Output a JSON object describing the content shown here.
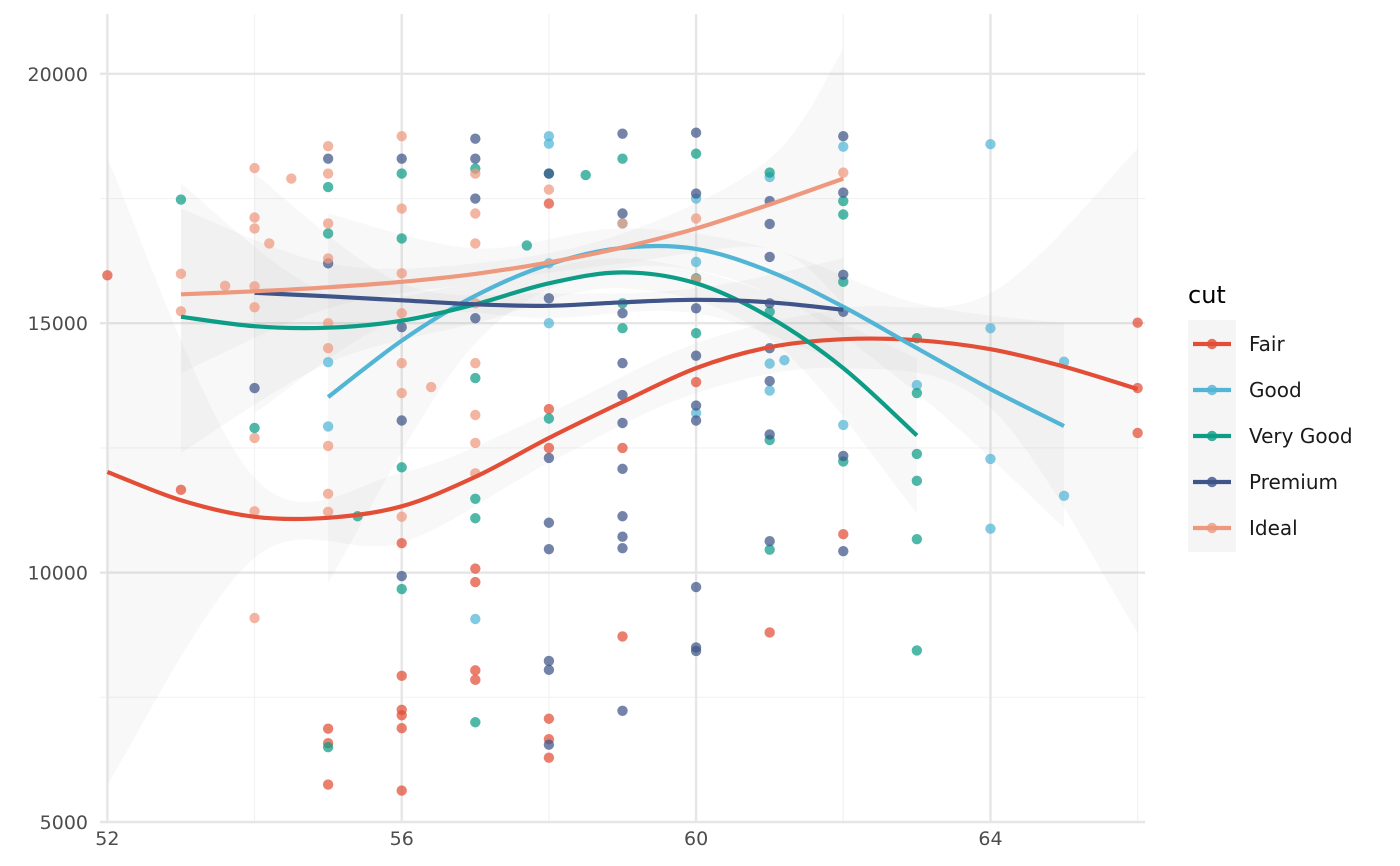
{
  "chart_data": {
    "type": "scatter",
    "title": "",
    "xlabel": "",
    "ylabel": "",
    "xlim": [
      51.9,
      66.1
    ],
    "ylim": [
      5000,
      21200
    ],
    "x_ticks": [
      52,
      56,
      60,
      64
    ],
    "x_tick_labels": [
      "52",
      "56",
      "60",
      "64"
    ],
    "y_ticks": [
      5000,
      10000,
      15000,
      20000
    ],
    "y_tick_labels": [
      "5000",
      "10000",
      "15000",
      "20000"
    ],
    "grid": true,
    "legend": {
      "title": "cut",
      "position": "right",
      "entries": [
        "Fair",
        "Good",
        "Very Good",
        "Premium",
        "Ideal"
      ]
    },
    "series": [
      {
        "name": "Fair",
        "color": "#E24E36",
        "points": [
          [
            52,
            15960
          ],
          [
            53,
            11660
          ],
          [
            55,
            6870
          ],
          [
            55,
            6580
          ],
          [
            55,
            5750
          ],
          [
            56,
            10590
          ],
          [
            56,
            7930
          ],
          [
            56,
            7250
          ],
          [
            56,
            7140
          ],
          [
            56,
            6880
          ],
          [
            56,
            5630
          ],
          [
            57,
            10080
          ],
          [
            57,
            9810
          ],
          [
            57,
            8040
          ],
          [
            57,
            7850
          ],
          [
            58,
            13280
          ],
          [
            58,
            12500
          ],
          [
            58,
            17400
          ],
          [
            58,
            7070
          ],
          [
            58,
            6660
          ],
          [
            58,
            6290
          ],
          [
            59,
            12500
          ],
          [
            59,
            8720
          ],
          [
            60,
            13820
          ],
          [
            61,
            8800
          ],
          [
            62,
            10770
          ],
          [
            66,
            15010
          ],
          [
            66,
            13700
          ],
          [
            66,
            12800
          ]
        ],
        "trend": [
          [
            52,
            12020
          ],
          [
            53,
            11450
          ],
          [
            54,
            11120
          ],
          [
            55,
            11100
          ],
          [
            56,
            11330
          ],
          [
            57,
            11920
          ],
          [
            58,
            12700
          ],
          [
            59,
            13420
          ],
          [
            60,
            14100
          ],
          [
            61,
            14520
          ],
          [
            62,
            14680
          ],
          [
            63,
            14660
          ],
          [
            64,
            14480
          ],
          [
            65,
            14130
          ],
          [
            66,
            13680
          ]
        ],
        "band": [
          [
            52,
            5750,
            18300
          ],
          [
            54,
            10300,
            11900
          ],
          [
            56,
            10600,
            12000
          ],
          [
            58,
            12200,
            13200
          ],
          [
            60,
            13600,
            14600
          ],
          [
            62,
            14100,
            15300
          ],
          [
            64,
            13300,
            15600
          ],
          [
            66,
            8800,
            18500
          ]
        ]
      },
      {
        "name": "Good",
        "color": "#52B5D6",
        "points": [
          [
            55,
            14220
          ],
          [
            55,
            12930
          ],
          [
            57,
            9070
          ],
          [
            58,
            18750
          ],
          [
            58,
            18600
          ],
          [
            58,
            16200
          ],
          [
            58,
            15000
          ],
          [
            59,
            17000
          ],
          [
            60,
            17500
          ],
          [
            60,
            16230
          ],
          [
            60,
            13200
          ],
          [
            61,
            17930
          ],
          [
            61,
            14190
          ],
          [
            61,
            13650
          ],
          [
            61.2,
            14260
          ],
          [
            62,
            18540
          ],
          [
            62,
            12960
          ],
          [
            63,
            13760
          ],
          [
            64,
            18590
          ],
          [
            64,
            14900
          ],
          [
            64,
            12280
          ],
          [
            64,
            10880
          ],
          [
            65,
            14230
          ],
          [
            65,
            11540
          ]
        ],
        "trend": [
          [
            55,
            13520
          ],
          [
            56,
            14650
          ],
          [
            57,
            15550
          ],
          [
            58,
            16180
          ],
          [
            59,
            16510
          ],
          [
            60,
            16490
          ],
          [
            61,
            16040
          ],
          [
            62,
            15330
          ],
          [
            63,
            14500
          ],
          [
            64,
            13680
          ],
          [
            65,
            12940
          ]
        ],
        "band": [
          [
            55,
            9800,
            17200
          ],
          [
            57,
            14600,
            16500
          ],
          [
            59,
            16100,
            16900
          ],
          [
            61,
            15600,
            16500
          ],
          [
            63,
            13600,
            15400
          ],
          [
            65,
            10900,
            15000
          ]
        ]
      },
      {
        "name": "Very Good",
        "color": "#0D9D86",
        "points": [
          [
            53,
            17480
          ],
          [
            54,
            12900
          ],
          [
            55,
            17730
          ],
          [
            55,
            16800
          ],
          [
            55,
            6500
          ],
          [
            55.4,
            11130
          ],
          [
            56,
            18000
          ],
          [
            56,
            12110
          ],
          [
            56,
            16700
          ],
          [
            56,
            9670
          ],
          [
            57,
            18100
          ],
          [
            57,
            13900
          ],
          [
            57,
            11480
          ],
          [
            57,
            11090
          ],
          [
            57,
            7000
          ],
          [
            57.7,
            16560
          ],
          [
            58,
            18000
          ],
          [
            58,
            13090
          ],
          [
            58.5,
            17970
          ],
          [
            59,
            18300
          ],
          [
            59,
            15400
          ],
          [
            59,
            14900
          ],
          [
            60,
            18400
          ],
          [
            60,
            15900
          ],
          [
            60,
            14800
          ],
          [
            61,
            18020
          ],
          [
            61,
            15230
          ],
          [
            61,
            12660
          ],
          [
            61,
            10460
          ],
          [
            62,
            17450
          ],
          [
            62,
            17180
          ],
          [
            62,
            15830
          ],
          [
            62,
            12230
          ],
          [
            63,
            14700
          ],
          [
            63,
            13600
          ],
          [
            63,
            12380
          ],
          [
            63,
            11840
          ],
          [
            63,
            10670
          ],
          [
            63,
            8440
          ]
        ],
        "trend": [
          [
            53,
            15130
          ],
          [
            54,
            14940
          ],
          [
            55,
            14910
          ],
          [
            56,
            15050
          ],
          [
            57,
            15380
          ],
          [
            58,
            15800
          ],
          [
            59,
            16020
          ],
          [
            60,
            15800
          ],
          [
            61,
            15120
          ],
          [
            62,
            14100
          ],
          [
            63,
            12750
          ]
        ],
        "band": [
          [
            53,
            12400,
            17800
          ],
          [
            55,
            14200,
            15600
          ],
          [
            57,
            15000,
            15800
          ],
          [
            59,
            15700,
            16300
          ],
          [
            61,
            14700,
            15600
          ],
          [
            63,
            11200,
            14300
          ]
        ]
      },
      {
        "name": "Premium",
        "color": "#3F5488",
        "points": [
          [
            54,
            13700
          ],
          [
            55,
            18300
          ],
          [
            55,
            16200
          ],
          [
            56,
            18300
          ],
          [
            56,
            14920
          ],
          [
            56,
            13050
          ],
          [
            56,
            9930
          ],
          [
            57,
            18700
          ],
          [
            57,
            18300
          ],
          [
            57,
            17500
          ],
          [
            57,
            15100
          ],
          [
            58,
            18000
          ],
          [
            58,
            15500
          ],
          [
            58,
            12300
          ],
          [
            58,
            11000
          ],
          [
            58,
            10470
          ],
          [
            58,
            8230
          ],
          [
            58,
            8050
          ],
          [
            58,
            6550
          ],
          [
            59,
            18800
          ],
          [
            59,
            17200
          ],
          [
            59,
            15200
          ],
          [
            59,
            14200
          ],
          [
            59,
            13560
          ],
          [
            59,
            13000
          ],
          [
            59,
            12080
          ],
          [
            59,
            11130
          ],
          [
            59,
            10720
          ],
          [
            59,
            10490
          ],
          [
            59,
            7230
          ],
          [
            60,
            18820
          ],
          [
            60,
            17600
          ],
          [
            60,
            15300
          ],
          [
            60,
            14350
          ],
          [
            60,
            13350
          ],
          [
            60,
            13050
          ],
          [
            60,
            9710
          ],
          [
            60,
            8500
          ],
          [
            60,
            8430
          ],
          [
            61,
            17450
          ],
          [
            61,
            16990
          ],
          [
            61,
            16330
          ],
          [
            61,
            15400
          ],
          [
            61,
            14500
          ],
          [
            61,
            13840
          ],
          [
            61,
            12770
          ],
          [
            61,
            10630
          ],
          [
            62,
            18750
          ],
          [
            62,
            17620
          ],
          [
            62,
            15970
          ],
          [
            62,
            15230
          ],
          [
            62,
            12340
          ],
          [
            62,
            10430
          ]
        ],
        "trend": [
          [
            54,
            15610
          ],
          [
            55,
            15540
          ],
          [
            56,
            15460
          ],
          [
            57,
            15380
          ],
          [
            58,
            15350
          ],
          [
            59,
            15420
          ],
          [
            60,
            15470
          ],
          [
            61,
            15420
          ],
          [
            62,
            15270
          ]
        ],
        "band": [
          [
            54,
            13200,
            18000
          ],
          [
            56,
            15100,
            15800
          ],
          [
            58,
            15100,
            15600
          ],
          [
            60,
            15200,
            15700
          ],
          [
            62,
            14200,
            16300
          ]
        ]
      },
      {
        "name": "Ideal",
        "color": "#EE987E",
        "points": [
          [
            53,
            15990
          ],
          [
            53,
            15240
          ],
          [
            53.6,
            15750
          ],
          [
            54,
            18110
          ],
          [
            54,
            17120
          ],
          [
            54,
            16900
          ],
          [
            54,
            15740
          ],
          [
            54,
            15320
          ],
          [
            54,
            12700
          ],
          [
            54,
            11230
          ],
          [
            54,
            9090
          ],
          [
            54.2,
            16600
          ],
          [
            54.5,
            17900
          ],
          [
            55,
            18550
          ],
          [
            55,
            18000
          ],
          [
            55,
            17000
          ],
          [
            55,
            16300
          ],
          [
            55,
            15000
          ],
          [
            55,
            14500
          ],
          [
            55,
            12540
          ],
          [
            55,
            11580
          ],
          [
            55,
            11220
          ],
          [
            56,
            18750
          ],
          [
            56,
            17300
          ],
          [
            56,
            16000
          ],
          [
            56,
            15200
          ],
          [
            56,
            14200
          ],
          [
            56,
            13600
          ],
          [
            56,
            11120
          ],
          [
            56.4,
            13720
          ],
          [
            57,
            18000
          ],
          [
            57,
            17200
          ],
          [
            57,
            16600
          ],
          [
            57,
            15400
          ],
          [
            57,
            14200
          ],
          [
            57,
            13160
          ],
          [
            57,
            12600
          ],
          [
            57,
            11990
          ],
          [
            58,
            17680
          ],
          [
            59,
            17000
          ],
          [
            60,
            17100
          ],
          [
            60,
            15880
          ],
          [
            62,
            18020
          ]
        ],
        "trend": [
          [
            53,
            15580
          ],
          [
            54,
            15640
          ],
          [
            55,
            15720
          ],
          [
            56,
            15830
          ],
          [
            57,
            15990
          ],
          [
            58,
            16220
          ],
          [
            59,
            16520
          ],
          [
            60,
            16900
          ],
          [
            61,
            17380
          ],
          [
            62,
            17900
          ]
        ],
        "band": [
          [
            53,
            14000,
            17300
          ],
          [
            55,
            15300,
            16200
          ],
          [
            57,
            15800,
            16200
          ],
          [
            59,
            16200,
            16800
          ],
          [
            61,
            16500,
            18300
          ],
          [
            62,
            15400,
            20500
          ]
        ]
      }
    ]
  }
}
